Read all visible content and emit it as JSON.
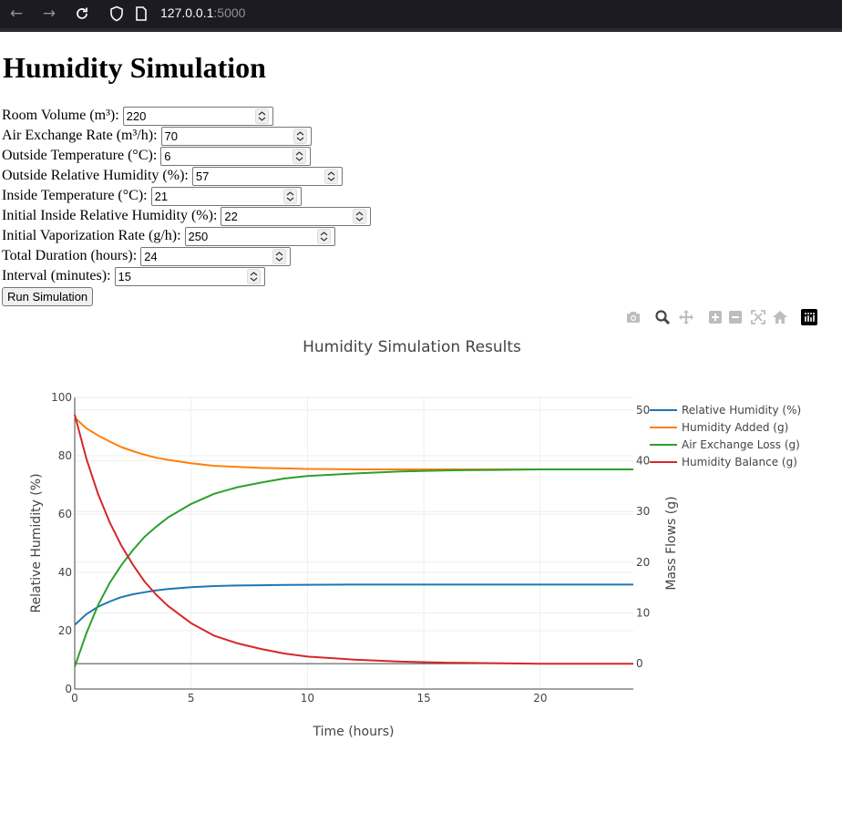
{
  "browser": {
    "url_host": "127.0.0.1",
    "url_port": ":5000"
  },
  "page": {
    "title": "Humidity Simulation"
  },
  "form": {
    "fields": [
      {
        "label": "Room Volume (m³):",
        "value": "220"
      },
      {
        "label": "Air Exchange Rate (m³/h):",
        "value": "70"
      },
      {
        "label": "Outside Temperature (°C):",
        "value": "6"
      },
      {
        "label": "Outside Relative Humidity (%):",
        "value": "57"
      },
      {
        "label": "Inside Temperature (°C):",
        "value": "21"
      },
      {
        "label": "Initial Inside Relative Humidity (%):",
        "value": "22"
      },
      {
        "label": "Initial Vaporization Rate (g/h):",
        "value": "250"
      },
      {
        "label": "Total Duration (hours):",
        "value": "24"
      },
      {
        "label": "Interval (minutes):",
        "value": "15"
      }
    ],
    "run_label": "Run Simulation"
  },
  "modebar": [
    "camera-icon",
    "zoom-icon",
    "pan-icon",
    "zoom-in-icon",
    "zoom-out-icon",
    "autoscale-icon",
    "home-icon",
    "plotly-logo-icon"
  ],
  "chart_data": {
    "type": "line",
    "title": "Humidity Simulation Results",
    "xlabel": "Time (hours)",
    "ylabel": "Relative Humidity (%)",
    "y2label": "Mass Flows (g)",
    "xlim": [
      0,
      24
    ],
    "ylim": [
      0,
      100
    ],
    "y2lim": [
      -5,
      52.5
    ],
    "x_ticks": [
      0,
      5,
      10,
      15,
      20
    ],
    "y_ticks": [
      0,
      20,
      40,
      60,
      80,
      100
    ],
    "y2_ticks": [
      0,
      10,
      20,
      30,
      40,
      50
    ],
    "y2_tick_labels": [
      "0",
      "10",
      "20",
      "30",
      "40",
      "50"
    ],
    "grid": true,
    "legend_position": "top-right",
    "colors": {
      "rh": "#1f77b4",
      "added": "#ff7f0e",
      "loss": "#2ca02c",
      "balance": "#d62728"
    },
    "x": [
      0,
      0.5,
      1,
      1.5,
      2,
      2.5,
      3,
      3.5,
      4,
      5,
      6,
      7,
      8,
      9,
      10,
      12,
      14,
      16,
      18,
      20,
      22,
      24
    ],
    "series": [
      {
        "name": "Relative Humidity (%)",
        "axis": "y",
        "values": [
          22,
          25.7,
          28.2,
          30,
          31.5,
          32.5,
          33.2,
          33.8,
          34.3,
          34.9,
          35.3,
          35.5,
          35.6,
          35.7,
          35.75,
          35.8,
          35.8,
          35.8,
          35.8,
          35.8,
          35.8,
          35.8
        ]
      },
      {
        "name": "Humidity Added (g)",
        "axis": "y2",
        "values": [
          48.5,
          46.4,
          45,
          43.8,
          42.7,
          41.9,
          41.2,
          40.6,
          40.2,
          39.5,
          39,
          38.8,
          38.6,
          38.5,
          38.4,
          38.3,
          38.3,
          38.3,
          38.3,
          38.3,
          38.3,
          38.3
        ]
      },
      {
        "name": "Air Exchange Loss (g)",
        "axis": "y2",
        "values": [
          -0.6,
          6,
          11.5,
          15.9,
          19.4,
          22.4,
          25,
          27,
          28.8,
          31.5,
          33.5,
          34.8,
          35.7,
          36.5,
          37,
          37.5,
          37.9,
          38.1,
          38.2,
          38.3,
          38.3,
          38.3
        ]
      },
      {
        "name": "Humidity Balance (g)",
        "axis": "y2",
        "values": [
          49.1,
          40.4,
          33.5,
          27.9,
          23.3,
          19.5,
          16.2,
          13.6,
          11.4,
          8,
          5.5,
          4,
          2.9,
          2,
          1.4,
          0.8,
          0.4,
          0.2,
          0.1,
          0,
          0,
          0
        ]
      }
    ]
  }
}
